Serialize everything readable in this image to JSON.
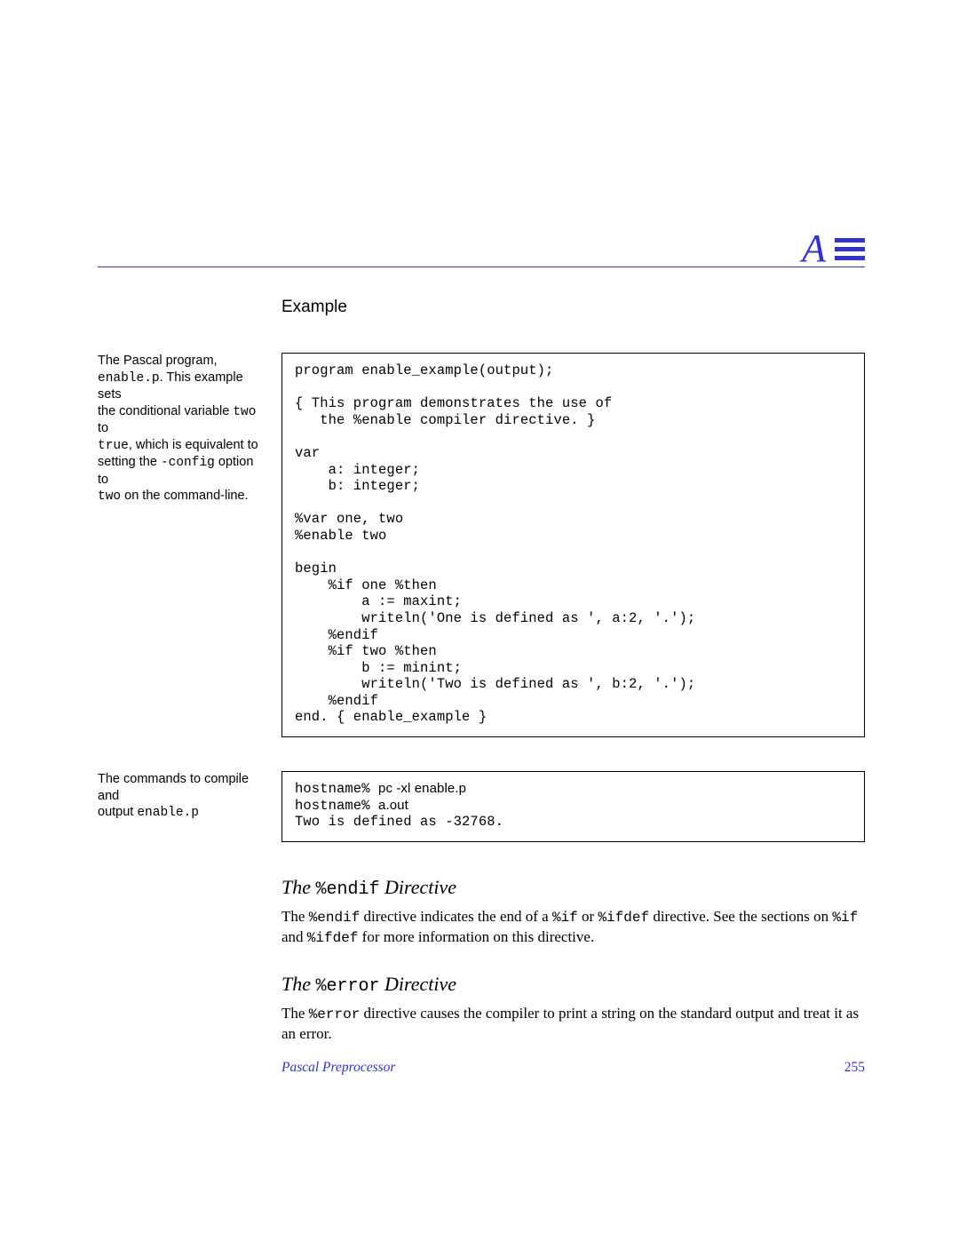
{
  "colors": {
    "accent": "#3232cc",
    "text": "#000000",
    "background": "#ffffff",
    "border": "#000000"
  },
  "header": {
    "letter": "A"
  },
  "section_heading": "Example",
  "side1": {
    "l1": "The Pascal program,",
    "l2a": "enable.p",
    "l2b": ". This example sets",
    "l3a": "the conditional variable ",
    "l3b": "two",
    "l3c": " to",
    "l4a": "true",
    "l4b": ", which is equivalent to",
    "l5a": "setting the ",
    "l5b": "-config",
    "l5c": " option to",
    "l6a": "two",
    "l6b": " on the command-line."
  },
  "code1": "program enable_example(output);\n\n{ This program demonstrates the use of\n   the %enable compiler directive. }\n\nvar\n    a: integer;\n    b: integer;\n\n%var one, two\n%enable two\n\nbegin\n    %if one %then\n        a := maxint;\n        writeln('One is defined as ', a:2, '.');\n    %endif\n    %if two %then\n        b := minint;\n        writeln('Two is defined as ', b:2, '.');\n    %endif\nend. { enable_example }",
  "side2": {
    "l1": "The commands to compile and",
    "l2a": "output ",
    "l2b": "enable.p"
  },
  "code2": {
    "l1a": "hostname% ",
    "l1b": "pc -xl enable.p",
    "l2a": "hostname% ",
    "l2b": "a.out",
    "l3": "Two is defined as -32768."
  },
  "sub1": {
    "pre": "The ",
    "mid": "%endif",
    "post": " Directive"
  },
  "para1": {
    "t1": "The ",
    "m1": "%endif",
    "t2": " directive indicates the end of a ",
    "m2": "%if",
    "t3": " or ",
    "m3": "%ifdef",
    "t4": " directive.  See the sections on ",
    "m4": "%if",
    "t5": " and ",
    "m5": "%ifdef",
    "t6": " for more information on this directive."
  },
  "sub2": {
    "pre": "The ",
    "mid": "%error",
    "post": " Directive"
  },
  "para2": {
    "t1": "The ",
    "m1": "%error",
    "t2": " directive causes the compiler to print a string on the standard output and treat it as an error."
  },
  "footer": {
    "title": "Pascal Preprocessor",
    "page": "255"
  }
}
